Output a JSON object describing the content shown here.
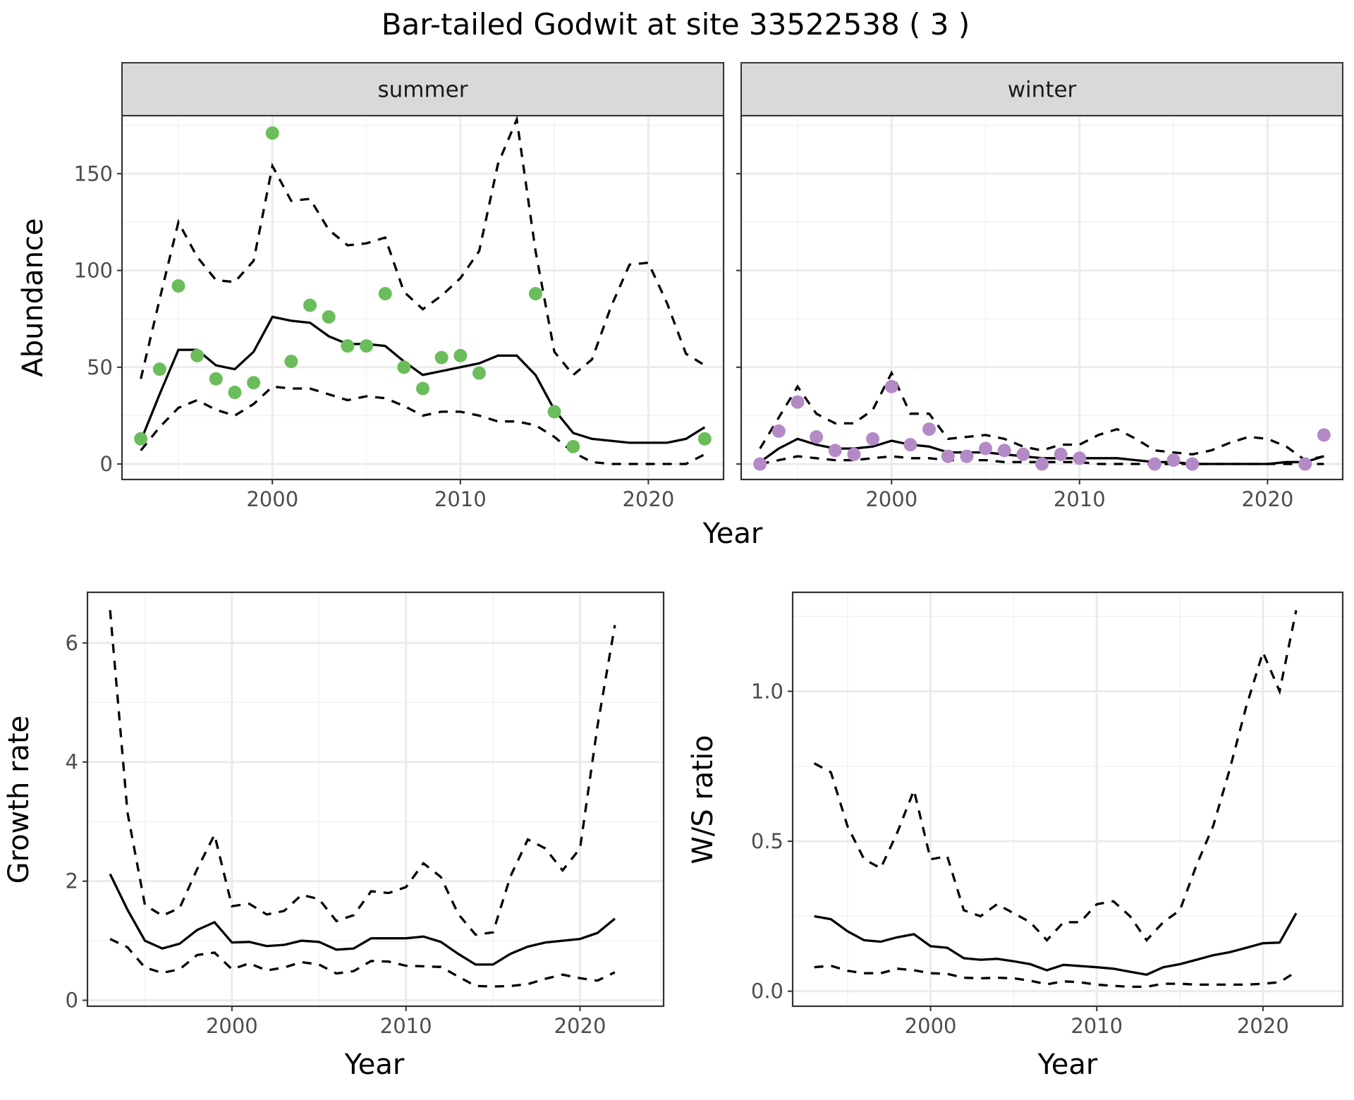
{
  "title": "Bar-tailed Godwit at site 33522538 ( 3 )",
  "colors": {
    "summer_points": "#6abd5a",
    "winter_points": "#b48ac6",
    "lines": "#000000"
  },
  "chart_data": [
    {
      "id": "abundance-summer",
      "type": "line",
      "facet": "summer",
      "xlabel": "Year",
      "ylabel": "Abundance",
      "xlim": [
        1992,
        2024
      ],
      "ylim": [
        -8,
        180
      ],
      "xticks": [
        2000,
        2010,
        2020
      ],
      "yticks": [
        0,
        50,
        100,
        150
      ],
      "grid": true,
      "series": [
        {
          "role": "mean",
          "x": [
            1993,
            1994,
            1995,
            1996,
            1997,
            1998,
            1999,
            2000,
            2001,
            2002,
            2003,
            2004,
            2005,
            2006,
            2007,
            2008,
            2009,
            2010,
            2011,
            2012,
            2013,
            2014,
            2015,
            2016,
            2017,
            2018,
            2019,
            2020,
            2021,
            2022,
            2023
          ],
          "values": [
            12,
            36,
            59,
            59,
            51,
            49,
            58,
            76,
            74,
            73,
            66,
            62,
            62,
            61,
            53,
            46,
            48,
            50,
            52,
            56,
            56,
            46,
            28,
            16,
            13,
            12,
            11,
            11,
            11,
            13,
            19
          ]
        },
        {
          "role": "upper",
          "x": [
            1993,
            1994,
            1995,
            1996,
            1997,
            1998,
            1999,
            2000,
            2001,
            2002,
            2003,
            2004,
            2005,
            2006,
            2007,
            2008,
            2009,
            2010,
            2011,
            2012,
            2013,
            2014,
            2015,
            2016,
            2017,
            2018,
            2019,
            2020,
            2021,
            2022,
            2023
          ],
          "values": [
            44,
            85,
            125,
            107,
            95,
            94,
            105,
            154,
            136,
            137,
            121,
            113,
            114,
            117,
            89,
            80,
            87,
            96,
            110,
            155,
            178,
            110,
            58,
            46,
            54,
            81,
            103,
            104,
            83,
            57,
            51
          ]
        },
        {
          "role": "lower",
          "x": [
            1993,
            1994,
            1995,
            1996,
            1997,
            1998,
            1999,
            2000,
            2001,
            2002,
            2003,
            2004,
            2005,
            2006,
            2007,
            2008,
            2009,
            2010,
            2011,
            2012,
            2013,
            2014,
            2015,
            2016,
            2017,
            2018,
            2019,
            2020,
            2021,
            2022,
            2023
          ],
          "values": [
            7,
            19,
            29,
            33,
            28,
            25,
            31,
            40,
            39,
            39,
            36,
            33,
            35,
            34,
            30,
            25,
            27,
            27,
            25,
            22,
            22,
            20,
            14,
            6,
            1,
            0,
            0,
            0,
            0,
            0,
            5
          ]
        },
        {
          "role": "observed",
          "type": "scatter",
          "x": [
            1993,
            1994,
            1995,
            1996,
            1997,
            1998,
            1999,
            2000,
            2001,
            2002,
            2003,
            2004,
            2005,
            2006,
            2007,
            2008,
            2009,
            2010,
            2011,
            2014,
            2015,
            2016,
            2023
          ],
          "values": [
            13,
            49,
            92,
            56,
            44,
            37,
            42,
            171,
            53,
            82,
            76,
            61,
            61,
            88,
            50,
            39,
            55,
            56,
            47,
            88,
            27,
            9,
            13
          ]
        }
      ]
    },
    {
      "id": "abundance-winter",
      "type": "line",
      "facet": "winter",
      "xlabel": "Year",
      "ylabel": "Abundance",
      "xlim": [
        1992,
        2024
      ],
      "ylim": [
        -8,
        180
      ],
      "xticks": [
        2000,
        2010,
        2020
      ],
      "yticks": [
        0,
        50,
        100,
        150
      ],
      "grid": true,
      "series": [
        {
          "role": "mean",
          "x": [
            1993,
            1994,
            1995,
            1996,
            1997,
            1998,
            1999,
            2000,
            2001,
            2002,
            2003,
            2004,
            2005,
            2006,
            2007,
            2008,
            2009,
            2010,
            2011,
            2012,
            2013,
            2014,
            2015,
            2016,
            2017,
            2018,
            2019,
            2020,
            2021,
            2022,
            2023
          ],
          "values": [
            1,
            8,
            13,
            10,
            8,
            8,
            9,
            12,
            10,
            9,
            6,
            6,
            6,
            5,
            4,
            3,
            3,
            3,
            3,
            3,
            2,
            1,
            1,
            0,
            0,
            0,
            0,
            0,
            1,
            1,
            4
          ]
        },
        {
          "role": "upper",
          "x": [
            1993,
            1994,
            1995,
            1996,
            1997,
            1998,
            1999,
            2000,
            2001,
            2002,
            2003,
            2004,
            2005,
            2006,
            2007,
            2008,
            2009,
            2010,
            2011,
            2012,
            2013,
            2014,
            2015,
            2016,
            2017,
            2018,
            2019,
            2020,
            2021,
            2022,
            2023
          ],
          "values": [
            8,
            24,
            40,
            26,
            21,
            21,
            28,
            47,
            26,
            26,
            13,
            14,
            15,
            13,
            9,
            7,
            10,
            10,
            15,
            18,
            13,
            7,
            6,
            5,
            7,
            11,
            14,
            13,
            9,
            2,
            4
          ]
        },
        {
          "role": "lower",
          "x": [
            1993,
            1994,
            1995,
            1996,
            1997,
            1998,
            1999,
            2000,
            2001,
            2002,
            2003,
            2004,
            2005,
            2006,
            2007,
            2008,
            2009,
            2010,
            2011,
            2012,
            2013,
            2014,
            2015,
            2016,
            2017,
            2018,
            2019,
            2020,
            2021,
            2022,
            2023
          ],
          "values": [
            0,
            2,
            4,
            3,
            2,
            2,
            3,
            4,
            3,
            3,
            2,
            2,
            2,
            1,
            1,
            1,
            1,
            1,
            0,
            0,
            0,
            0,
            0,
            0,
            0,
            0,
            0,
            0,
            0,
            0,
            0
          ]
        },
        {
          "role": "observed",
          "type": "scatter",
          "x": [
            1993,
            1994,
            1995,
            1996,
            1997,
            1998,
            1999,
            2000,
            2001,
            2002,
            2003,
            2004,
            2005,
            2006,
            2007,
            2008,
            2009,
            2010,
            2014,
            2015,
            2016,
            2022,
            2023
          ],
          "values": [
            0,
            17,
            32,
            14,
            7,
            5,
            13,
            40,
            10,
            18,
            4,
            4,
            8,
            7,
            5,
            0,
            5,
            3,
            0,
            2,
            0,
            0,
            15
          ]
        }
      ]
    },
    {
      "id": "growth-rate",
      "type": "line",
      "xlabel": "Year",
      "ylabel": "Growth rate",
      "xlim": [
        1991.7,
        2024.8
      ],
      "ylim": [
        -0.1,
        6.85
      ],
      "xticks": [
        2000,
        2010,
        2020
      ],
      "yticks": [
        0,
        2,
        4,
        6
      ],
      "grid": true,
      "series": [
        {
          "role": "mean",
          "x": [
            1993,
            1994,
            1995,
            1996,
            1997,
            1998,
            1999,
            2000,
            2001,
            2002,
            2003,
            2004,
            2005,
            2006,
            2007,
            2008,
            2009,
            2010,
            2011,
            2012,
            2013,
            2014,
            2015,
            2016,
            2017,
            2018,
            2019,
            2020,
            2021,
            2022
          ],
          "values": [
            2.12,
            1.52,
            1.0,
            0.87,
            0.95,
            1.18,
            1.31,
            0.97,
            0.98,
            0.91,
            0.93,
            1.0,
            0.98,
            0.85,
            0.87,
            1.04,
            1.04,
            1.04,
            1.07,
            0.98,
            0.78,
            0.6,
            0.6,
            0.78,
            0.9,
            0.97,
            1.0,
            1.03,
            1.13,
            1.37
          ]
        },
        {
          "role": "upper",
          "x": [
            1993,
            1994,
            1995,
            1996,
            1997,
            1998,
            1999,
            2000,
            2001,
            2002,
            2003,
            2004,
            2005,
            2006,
            2007,
            2008,
            2009,
            2010,
            2011,
            2012,
            2013,
            2014,
            2015,
            2016,
            2017,
            2018,
            2019,
            2020,
            2021,
            2022
          ],
          "values": [
            6.55,
            3.15,
            1.6,
            1.42,
            1.55,
            2.2,
            2.78,
            1.58,
            1.62,
            1.44,
            1.5,
            1.77,
            1.7,
            1.33,
            1.43,
            1.83,
            1.8,
            1.9,
            2.3,
            2.07,
            1.45,
            1.1,
            1.14,
            2.08,
            2.7,
            2.55,
            2.18,
            2.55,
            4.6,
            6.3
          ]
        },
        {
          "role": "lower",
          "x": [
            1993,
            1994,
            1995,
            1996,
            1997,
            1998,
            1999,
            2000,
            2001,
            2002,
            2003,
            2004,
            2005,
            2006,
            2007,
            2008,
            2009,
            2010,
            2011,
            2012,
            2013,
            2014,
            2015,
            2016,
            2017,
            2018,
            2019,
            2020,
            2021,
            2022
          ],
          "values": [
            1.03,
            0.89,
            0.55,
            0.46,
            0.52,
            0.76,
            0.8,
            0.52,
            0.62,
            0.5,
            0.55,
            0.64,
            0.6,
            0.45,
            0.49,
            0.66,
            0.65,
            0.58,
            0.57,
            0.56,
            0.4,
            0.24,
            0.23,
            0.24,
            0.27,
            0.36,
            0.43,
            0.37,
            0.33,
            0.47
          ]
        }
      ]
    },
    {
      "id": "ws-ratio",
      "type": "line",
      "xlabel": "Year",
      "ylabel": "W/S ratio",
      "xlim": [
        1991.7,
        2024.8
      ],
      "ylim": [
        -0.05,
        1.33
      ],
      "xticks": [
        2000,
        2010,
        2020
      ],
      "yticks": [
        0.0,
        0.5,
        1.0
      ],
      "ytick_labels": [
        "0.0",
        "0.5",
        "1.0"
      ],
      "grid": true,
      "series": [
        {
          "role": "mean",
          "x": [
            1993,
            1994,
            1995,
            1996,
            1997,
            1998,
            1999,
            2000,
            2001,
            2002,
            2003,
            2004,
            2005,
            2006,
            2007,
            2008,
            2009,
            2010,
            2011,
            2012,
            2013,
            2014,
            2015,
            2016,
            2017,
            2018,
            2019,
            2020,
            2021,
            2022
          ],
          "values": [
            0.25,
            0.24,
            0.2,
            0.17,
            0.165,
            0.18,
            0.19,
            0.15,
            0.145,
            0.11,
            0.105,
            0.108,
            0.1,
            0.09,
            0.07,
            0.088,
            0.084,
            0.08,
            0.075,
            0.065,
            0.055,
            0.08,
            0.09,
            0.105,
            0.12,
            0.13,
            0.145,
            0.16,
            0.162,
            0.26
          ]
        },
        {
          "role": "upper",
          "x": [
            1993,
            1994,
            1995,
            1996,
            1997,
            1998,
            1999,
            2000,
            2001,
            2002,
            2003,
            2004,
            2005,
            2006,
            2007,
            2008,
            2009,
            2010,
            2011,
            2012,
            2013,
            2014,
            2015,
            2016,
            2017,
            2018,
            2019,
            2020,
            2021,
            2022
          ],
          "values": [
            0.76,
            0.73,
            0.55,
            0.44,
            0.41,
            0.53,
            0.67,
            0.44,
            0.45,
            0.27,
            0.25,
            0.29,
            0.26,
            0.23,
            0.17,
            0.23,
            0.23,
            0.29,
            0.3,
            0.25,
            0.17,
            0.23,
            0.27,
            0.42,
            0.55,
            0.74,
            0.95,
            1.13,
            1.0,
            1.27
          ]
        },
        {
          "role": "lower",
          "x": [
            1993,
            1994,
            1995,
            1996,
            1997,
            1998,
            1999,
            2000,
            2001,
            2002,
            2003,
            2004,
            2005,
            2006,
            2007,
            2008,
            2009,
            2010,
            2011,
            2012,
            2013,
            2014,
            2015,
            2016,
            2017,
            2018,
            2019,
            2020,
            2021,
            2022
          ],
          "values": [
            0.08,
            0.085,
            0.068,
            0.06,
            0.06,
            0.075,
            0.07,
            0.06,
            0.058,
            0.045,
            0.043,
            0.045,
            0.043,
            0.035,
            0.023,
            0.033,
            0.03,
            0.022,
            0.018,
            0.015,
            0.015,
            0.025,
            0.025,
            0.022,
            0.022,
            0.022,
            0.022,
            0.025,
            0.03,
            0.065
          ]
        }
      ]
    }
  ]
}
